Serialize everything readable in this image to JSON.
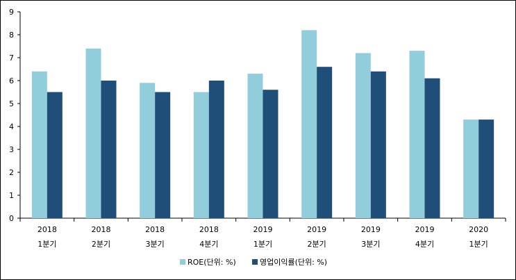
{
  "chart_data": {
    "type": "bar",
    "categories": [
      [
        "2018",
        "1분기"
      ],
      [
        "2018",
        "2분기"
      ],
      [
        "2018",
        "3분기"
      ],
      [
        "2018",
        "4분기"
      ],
      [
        "2019",
        "1분기"
      ],
      [
        "2019",
        "2분기"
      ],
      [
        "2019",
        "3분기"
      ],
      [
        "2019",
        "4분기"
      ],
      [
        "2020",
        "1분기"
      ]
    ],
    "series": [
      {
        "name": "ROE(단위: %)",
        "color": "#92CDDC",
        "values": [
          6.4,
          7.4,
          5.9,
          5.5,
          6.3,
          8.2,
          7.2,
          7.3,
          4.3
        ]
      },
      {
        "name": "영업이익률(단위: %)",
        "color": "#1F4E79",
        "values": [
          5.5,
          6.0,
          5.5,
          6.0,
          5.6,
          6.6,
          6.4,
          6.1,
          4.3
        ]
      }
    ],
    "title": "",
    "xlabel": "",
    "ylabel": "",
    "ylim": [
      0,
      9
    ],
    "yticks": [
      "0",
      "1",
      "2",
      "3",
      "4",
      "5",
      "6",
      "7",
      "8",
      "9"
    ],
    "grid": false,
    "legend_position": "bottom"
  }
}
